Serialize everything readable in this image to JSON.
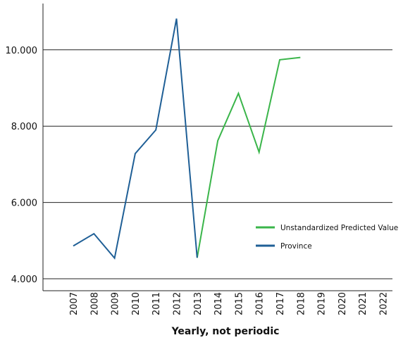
{
  "chart_data": {
    "type": "line",
    "xlabel": "Yearly, not periodic",
    "ylabel": "",
    "categories": [
      "2007",
      "2008",
      "2009",
      "2010",
      "2011",
      "2012",
      "2013",
      "2014",
      "2015",
      "2016",
      "2017",
      "2018",
      "2019",
      "2020",
      "2021",
      "2022"
    ],
    "y_ticks": [
      {
        "value": 4,
        "label": "4.000"
      },
      {
        "value": 6,
        "label": "6.000"
      },
      {
        "value": 8,
        "label": "8.000"
      },
      {
        "value": 10,
        "label": "10.000"
      }
    ],
    "ylim": [
      3.6,
      11.3
    ],
    "grid": true,
    "legend_position": "right",
    "series": [
      {
        "name": "Unstandardized Predicted Value",
        "color": "#3ab54a",
        "values": [
          null,
          null,
          null,
          null,
          null,
          null,
          4.55,
          7.62,
          8.86,
          7.32,
          9.74,
          9.8,
          null,
          null,
          null,
          null
        ]
      },
      {
        "name": "Province",
        "color": "#1f5f96",
        "values": [
          4.86,
          5.18,
          4.54,
          7.28,
          7.9,
          10.82,
          4.55,
          null,
          null,
          null,
          null,
          null,
          null,
          null,
          null,
          null
        ]
      }
    ]
  }
}
